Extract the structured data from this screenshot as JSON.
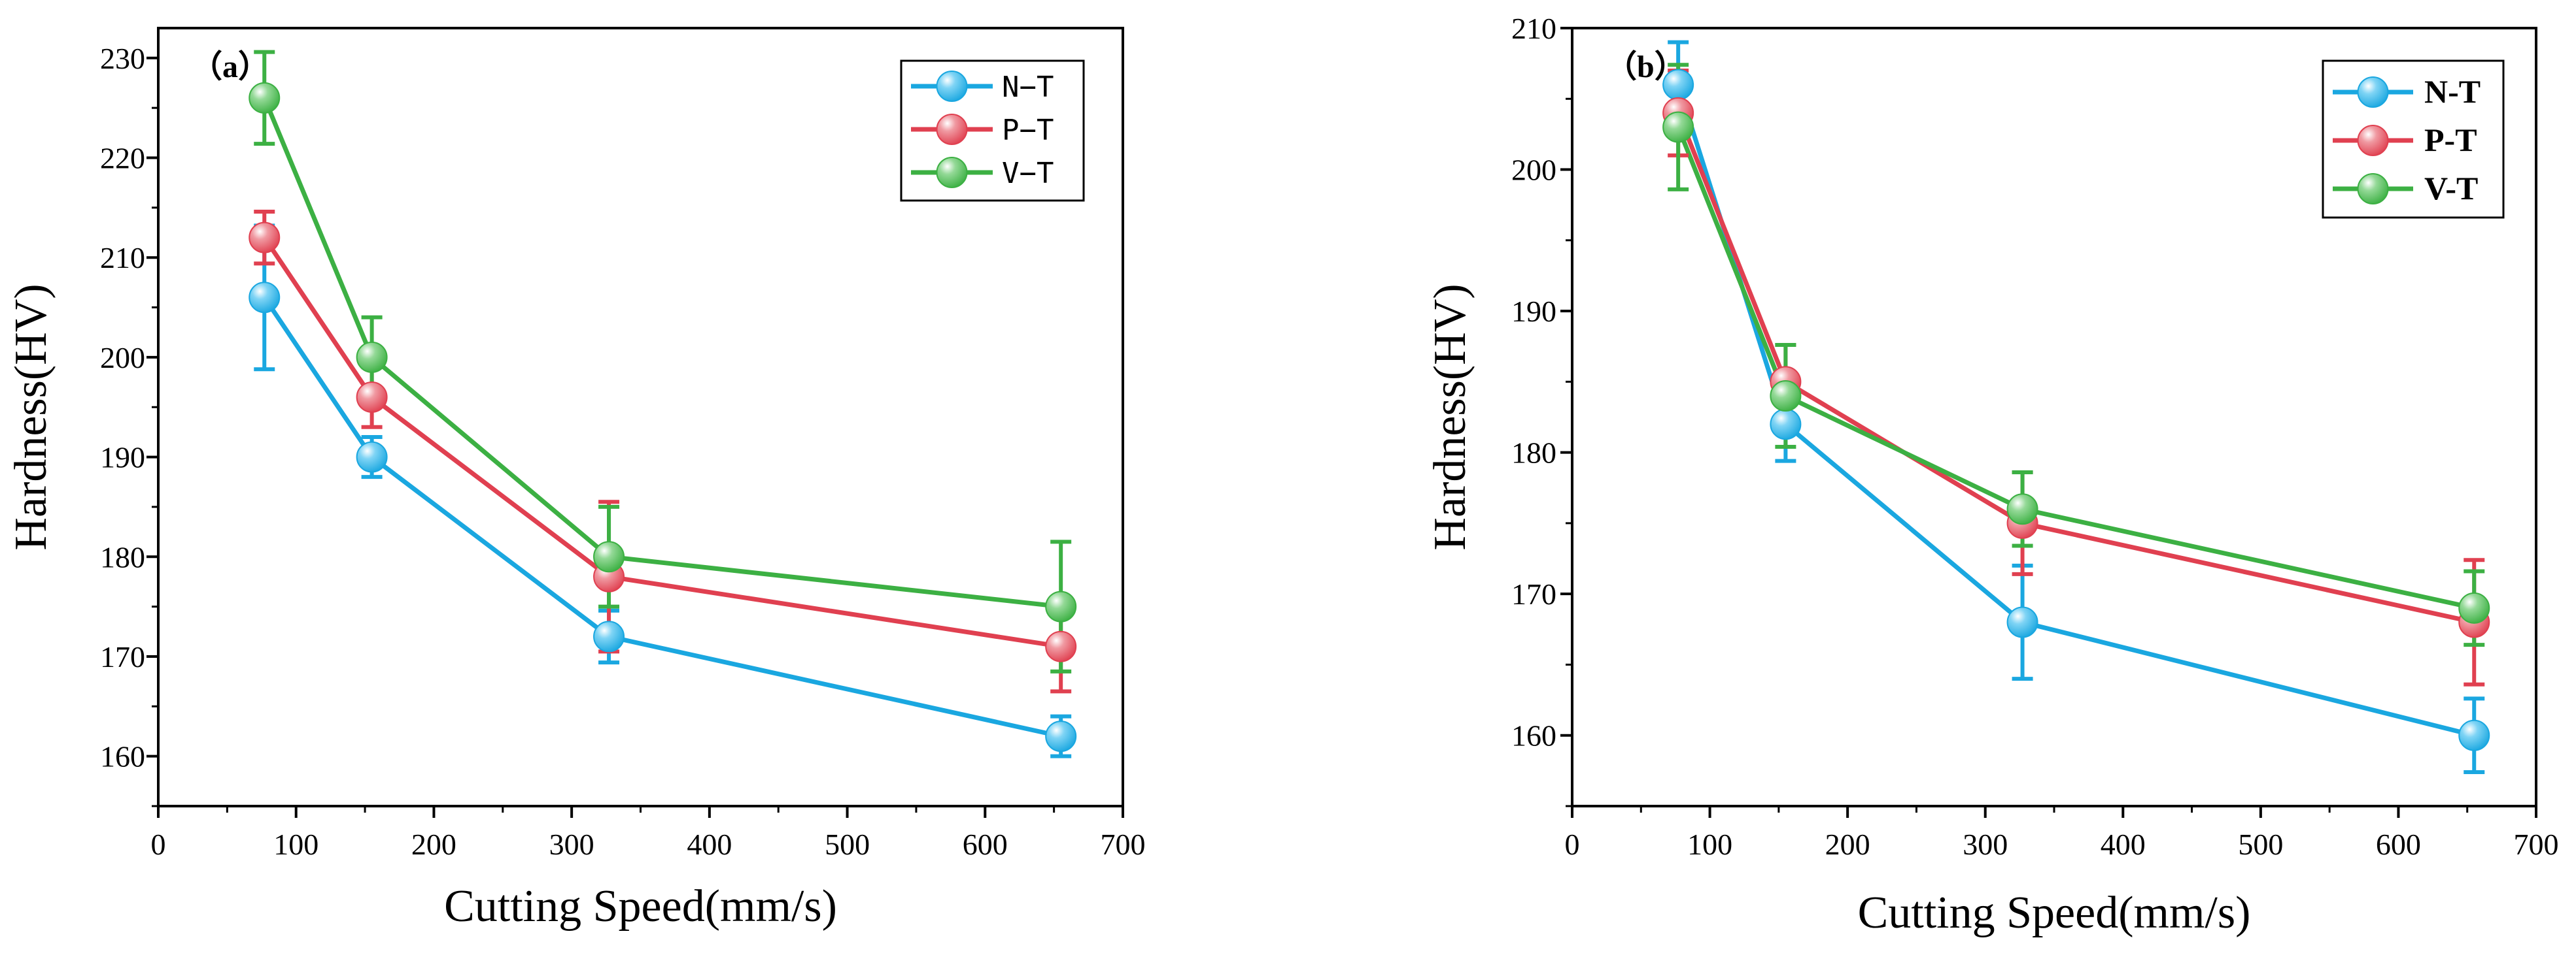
{
  "chart_data": [
    {
      "type": "line",
      "panel_label": "（a）",
      "xlabel": "Cutting Speed(mm/s)",
      "ylabel": "Hardness(HV)",
      "xlim": [
        0,
        700
      ],
      "ylim": [
        155,
        233
      ],
      "x_ticks": [
        0,
        100,
        200,
        300,
        400,
        500,
        600,
        700
      ],
      "y_ticks": [
        160,
        170,
        180,
        190,
        200,
        210,
        220,
        230
      ],
      "legend_position": "top-right",
      "legend_style": "mono",
      "series": [
        {
          "name": "N−T",
          "color": "#1aa7e0",
          "x": [
            77,
            155,
            327,
            655
          ],
          "values": [
            206,
            190,
            172,
            162
          ],
          "err": [
            7.2,
            2.0,
            2.6,
            2.0
          ]
        },
        {
          "name": "P−T",
          "color": "#e04050",
          "x": [
            77,
            155,
            327,
            655
          ],
          "values": [
            212,
            196,
            178,
            171
          ],
          "err": [
            2.6,
            3.0,
            7.5,
            4.5
          ]
        },
        {
          "name": "V−T",
          "color": "#3cb043",
          "x": [
            77,
            155,
            327,
            655
          ],
          "values": [
            226,
            200,
            180,
            175
          ],
          "err": [
            4.6,
            4.0,
            5.0,
            6.5
          ]
        }
      ]
    },
    {
      "type": "line",
      "panel_label": "（b）",
      "xlabel": "Cutting Speed(mm/s)",
      "ylabel": "Hardness(HV)",
      "xlim": [
        0,
        700
      ],
      "ylim": [
        155,
        210
      ],
      "x_ticks": [
        0,
        100,
        200,
        300,
        400,
        500,
        600,
        700
      ],
      "y_ticks": [
        160,
        170,
        180,
        190,
        200,
        210
      ],
      "legend_position": "top-right",
      "legend_style": "bold",
      "series": [
        {
          "name": "N-T",
          "color": "#1aa7e0",
          "x": [
            77,
            155,
            327,
            655
          ],
          "values": [
            206,
            182,
            168,
            160
          ],
          "err": [
            3.0,
            2.6,
            4.0,
            2.6
          ]
        },
        {
          "name": "P-T",
          "color": "#e04050",
          "x": [
            77,
            155,
            327,
            655
          ],
          "values": [
            204,
            185,
            175,
            168
          ],
          "err": [
            3.0,
            2.6,
            3.6,
            4.4
          ]
        },
        {
          "name": "V-T",
          "color": "#3cb043",
          "x": [
            77,
            155,
            327,
            655
          ],
          "values": [
            203,
            184,
            176,
            169
          ],
          "err": [
            4.4,
            3.6,
            2.6,
            2.6
          ]
        }
      ]
    }
  ]
}
